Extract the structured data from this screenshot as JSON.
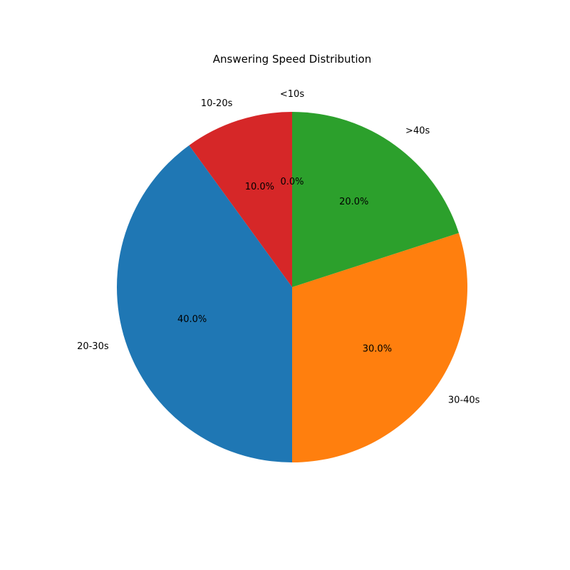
{
  "chart_data": {
    "type": "pie",
    "title": "Answering Speed Distribution",
    "categories": [
      "<10s",
      "10-20s",
      "20-30s",
      "30-40s",
      ">40s"
    ],
    "values": [
      0,
      10,
      40,
      30,
      20
    ],
    "percent_labels": [
      "0.0%",
      "10.0%",
      "40.0%",
      "30.0%",
      "20.0%"
    ],
    "colors": [
      "#1f77b4",
      "#d62728",
      "#1f77b4",
      "#ff7f0e",
      "#2ca02c"
    ],
    "start_angle_deg": 90,
    "direction": "counterclockwise",
    "legend": "none"
  }
}
